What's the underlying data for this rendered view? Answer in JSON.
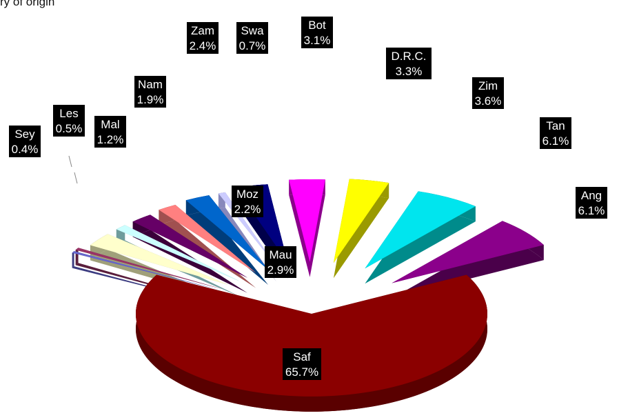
{
  "caption": "ry of origin",
  "chart_data": {
    "type": "pie",
    "style": "3d-exploded",
    "legend": "none",
    "slices": [
      {
        "label": "Saf",
        "percent": "65.7%",
        "value": 65.7,
        "color": "#8b0000",
        "side": "#5a0000"
      },
      {
        "label": "Ang",
        "percent": "6.1%",
        "value": 6.1,
        "color": "#8b008b",
        "side": "#4a004a"
      },
      {
        "label": "Tan",
        "percent": "6.1%",
        "value": 6.1,
        "color": "#00e5ee",
        "side": "#008b8b"
      },
      {
        "label": "Zim",
        "percent": "3.6%",
        "value": 3.6,
        "color": "#ffff00",
        "side": "#9a9a00"
      },
      {
        "label": "D.R.C.",
        "percent": "3.3%",
        "value": 3.3,
        "color": "#ff00ff",
        "side": "#8b008b"
      },
      {
        "label": "Bot",
        "percent": "3.1%",
        "value": 3.1,
        "color": "#000080",
        "side": "#00004a"
      },
      {
        "label": "Swa",
        "percent": "0.7%",
        "value": 0.7,
        "color": "#ccccff",
        "side": "#8888bb"
      },
      {
        "label": "Zam",
        "percent": "2.4%",
        "value": 2.4,
        "color": "#0066cc",
        "side": "#003d7a"
      },
      {
        "label": "Nam",
        "percent": "1.9%",
        "value": 1.9,
        "color": "#ff8080",
        "side": "#a05050"
      },
      {
        "label": "Moz",
        "percent": "2.2%",
        "value": 2.2,
        "color": "#660066",
        "side": "#3a003a"
      },
      {
        "label": "Mal",
        "percent": "1.2%",
        "value": 1.2,
        "color": "#ccffff",
        "side": "#6f9c9c"
      },
      {
        "label": "Mau",
        "percent": "2.9%",
        "value": 2.9,
        "color": "#ffffcc",
        "side": "#a0a07a"
      },
      {
        "label": "Les",
        "percent": "0.5%",
        "value": 0.5,
        "color": "#993366",
        "side": "#5a1e3c"
      },
      {
        "label": "Sey",
        "percent": "0.4%",
        "value": 0.4,
        "color": "#6666cc",
        "side": "#3b3b80"
      }
    ]
  }
}
